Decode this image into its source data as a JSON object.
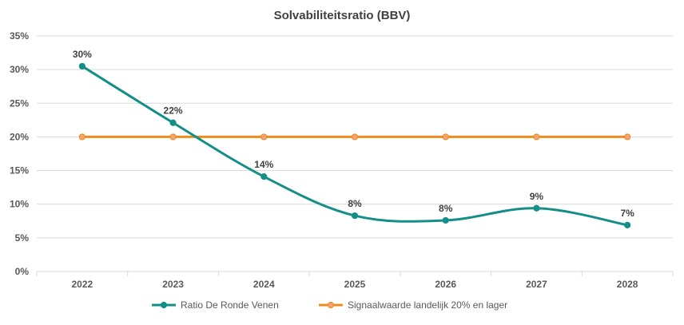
{
  "chart_data": {
    "type": "line",
    "title": "Solvabiliteitsratio  (BBV)",
    "xlabel": "",
    "ylabel": "",
    "categories": [
      "2022",
      "2023",
      "2024",
      "2025",
      "2026",
      "2027",
      "2028"
    ],
    "y_ticks": [
      "0%",
      "5%",
      "10%",
      "15%",
      "20%",
      "25%",
      "30%",
      "35%"
    ],
    "ylim": [
      0,
      35
    ],
    "grid": true,
    "legend_position": "bottom",
    "series": [
      {
        "name": "Ratio De Ronde Venen",
        "values": [
          30.5,
          22.1,
          14.1,
          8.3,
          7.6,
          9.4,
          6.9
        ],
        "labels": [
          "30%",
          "22%",
          "14%",
          "8%",
          "8%",
          "9%",
          "7%"
        ],
        "color": "#138f87",
        "smooth": true
      },
      {
        "name": "Signaalwaarde landelijk 20% en lager",
        "values": [
          20,
          20,
          20,
          20,
          20,
          20,
          20
        ],
        "labels": [],
        "color": "#ee8d1e",
        "marker_fill": "#f5a47c",
        "smooth": false
      }
    ],
    "colors": {
      "grid": "#d9d9d9",
      "axis_text": "#595959",
      "title": "#404040"
    }
  }
}
